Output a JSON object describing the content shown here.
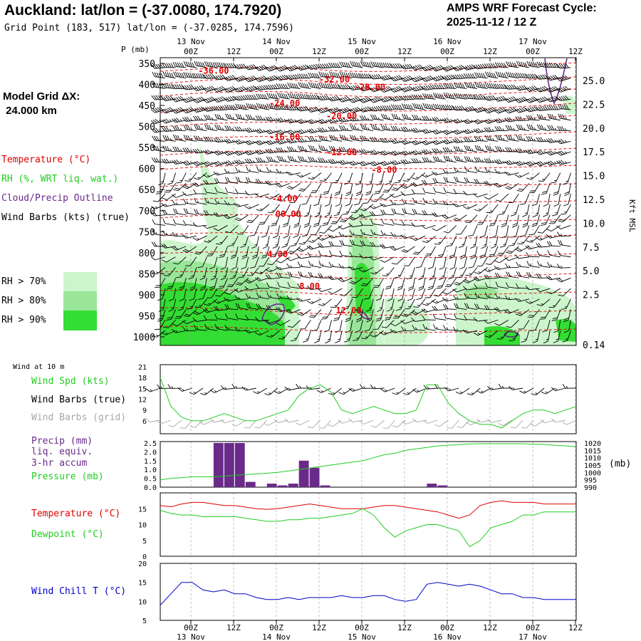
{
  "header": {
    "title": "Auckland:  lat/lon = (-37.0080, 174.7920)",
    "subtitle": "Grid Point (183, 517) lat/lon = (-37.0285, 174.7596)",
    "cycle_line1": "AMPS WRF Forecast Cycle:",
    "cycle_line2": "2025-11-12 / 12  Z",
    "grid_line1": "Model Grid ΔX:",
    "grid_line2": " 24.000 km"
  },
  "legend": {
    "temperature": "Temperature (°C)",
    "rh": "RH (%, WRT liq. wat.)",
    "cloud": "Cloud/Precip Outline",
    "barbs": "Wind Barbs (kts) (true)",
    "rh70": "RH > 70%",
    "rh80": "RH > 80%",
    "rh90": "RH > 90%",
    "wind10m": "Wind at 10 m",
    "wind_spd": "Wind Spd (kts)",
    "wind_true": "Wind Barbs (true)",
    "wind_grid": "Wind Barbs (grid)",
    "precip1": "Precip (mm)",
    "precip2": "liq. equiv.",
    "precip3": "3-hr accum",
    "pressure": "Pressure (mb)",
    "pressure_unit": "(mb)",
    "temp2": "Temperature (°C)",
    "dewpoint": "Dewpoint (°C)",
    "windchill": "Wind Chill T (°C)",
    "p_axis_label": "P (mb)",
    "kft_label": "Kft MSL"
  },
  "colors": {
    "temp": "#e00000",
    "green": "#22cc22",
    "purple": "#6a2a8a",
    "blue": "#0000cc",
    "grey": "#a8a8a8",
    "rh70": "#ccf5cc",
    "rh80": "#99e699",
    "rh90": "#33dd33"
  },
  "chart_data": [
    {
      "type": "heatmap",
      "name": "vertical cross-section",
      "time_top_labels": [
        "00Z",
        "12Z",
        "00Z",
        "12Z",
        "00Z",
        "12Z",
        "00Z",
        "12Z",
        "00Z",
        "12Z"
      ],
      "date_top_labels": [
        "13 Nov",
        "14 Nov",
        "15 Nov",
        "16 Nov",
        "17 Nov"
      ],
      "pressure_levels": [
        350,
        400,
        450,
        500,
        550,
        600,
        650,
        700,
        750,
        800,
        850,
        900,
        950,
        1000
      ],
      "height_kft": [
        "25.0",
        "22.5",
        "20.0",
        "17.5",
        "15.0",
        "12.5",
        "10.0",
        "7.5",
        "5.0",
        "2.5",
        "0.14"
      ],
      "temp_contour_labels": [
        {
          "text": "-36.00",
          "t": 15,
          "p": 368
        },
        {
          "text": "-32.00",
          "t": 49,
          "p": 388
        },
        {
          "text": "-28.00",
          "t": 59,
          "p": 407
        },
        {
          "text": "-24.00",
          "t": 35,
          "p": 445
        },
        {
          "text": "-20.00",
          "t": 51,
          "p": 475
        },
        {
          "text": "-16.00",
          "t": 35,
          "p": 525
        },
        {
          "text": "-12.00",
          "t": 51,
          "p": 562
        },
        {
          "text": "-8.00",
          "t": 63,
          "p": 603
        },
        {
          "text": "-4.00",
          "t": 35,
          "p": 672
        },
        {
          "text": "00.00",
          "t": 36,
          "p": 708
        },
        {
          "text": "4.00",
          "t": 33,
          "p": 804
        },
        {
          "text": "8.00",
          "t": 42,
          "p": 880
        },
        {
          "text": "12.00",
          "t": 53,
          "p": 937
        }
      ]
    },
    {
      "type": "line",
      "name": "10 m wind speed",
      "yticks": [
        6,
        9,
        12,
        15,
        18,
        21
      ],
      "ylim": [
        3,
        21
      ],
      "x_hours": [
        0,
        3,
        6,
        9,
        12,
        15,
        18,
        21,
        24,
        27,
        30,
        33,
        36,
        39,
        42,
        45,
        48,
        51,
        54,
        57,
        60,
        63,
        66,
        69,
        72,
        75,
        78,
        81,
        84,
        87,
        90,
        93,
        96,
        99,
        102,
        105,
        108,
        111,
        114,
        117
      ],
      "speed": [
        18,
        10,
        7,
        6,
        6,
        7,
        8,
        7,
        6,
        6,
        7,
        8,
        9,
        13,
        15,
        16,
        14,
        9,
        8,
        9,
        10,
        9,
        8,
        8,
        9,
        16,
        16,
        11,
        8,
        6,
        5,
        5,
        4,
        6,
        8,
        9,
        9,
        8,
        9,
        10
      ]
    },
    {
      "type": "bar",
      "name": "3-hr precip and pressure",
      "precip_yticks": [
        "2.5",
        "2.0",
        "1.5",
        "1.0",
        "0.5",
        "0.0"
      ],
      "pressure_yticks": [
        "1020",
        "1015",
        "1010",
        "1005",
        "1000",
        "995",
        "990"
      ],
      "x_hours": [
        0,
        3,
        6,
        9,
        12,
        15,
        18,
        21,
        24,
        27,
        30,
        33,
        36,
        39,
        42,
        45,
        48,
        51,
        54,
        57,
        60,
        63,
        66,
        69,
        72,
        75,
        78,
        81,
        84,
        87,
        90,
        93,
        96,
        99,
        102,
        105,
        108,
        111,
        114,
        117
      ],
      "precip": [
        0,
        0,
        0,
        0,
        0,
        2.5,
        2.5,
        2.5,
        0.3,
        0,
        0.2,
        0.1,
        0.2,
        1.5,
        1.1,
        0.1,
        0,
        0,
        0,
        0,
        0,
        0,
        0,
        0,
        0,
        0.2,
        0.1,
        0,
        0,
        0,
        0,
        0,
        0,
        0,
        0,
        0,
        0,
        0,
        0,
        0
      ],
      "pressure": [
        995,
        996,
        996.5,
        997,
        997,
        997,
        997.5,
        998,
        998.5,
        999,
        999.5,
        1000,
        1001,
        1002,
        1003,
        1004,
        1005,
        1006,
        1007,
        1008,
        1010,
        1012,
        1013,
        1015,
        1016,
        1017,
        1018,
        1018.5,
        1019,
        1019.3,
        1019.5,
        1019.5,
        1019.5,
        1019.5,
        1019.5,
        1019.2,
        1019,
        1018.5,
        1018,
        1017.5
      ]
    },
    {
      "type": "line",
      "name": "temperature and dewpoint",
      "yticks": [
        "15",
        "10",
        "5",
        "0"
      ],
      "ylim": [
        0,
        20
      ],
      "x_hours": [
        0,
        3,
        6,
        9,
        12,
        15,
        18,
        21,
        24,
        27,
        30,
        33,
        36,
        39,
        42,
        45,
        48,
        51,
        54,
        57,
        60,
        63,
        66,
        69,
        72,
        75,
        78,
        81,
        84,
        87,
        90,
        93,
        96,
        99,
        102,
        105,
        108,
        111,
        114,
        117
      ],
      "temp": [
        16,
        15.6,
        16.5,
        17,
        17,
        16.5,
        16,
        16,
        15.5,
        15,
        14.8,
        15,
        15.5,
        16,
        16.5,
        16,
        15.5,
        15,
        15,
        15,
        15.5,
        16,
        16,
        15.5,
        15,
        14.5,
        14,
        13,
        12,
        13,
        16,
        17,
        17.5,
        17,
        17,
        17,
        16.5,
        16.5,
        16.5,
        16.5
      ],
      "dewpoint": [
        14.5,
        13.5,
        13,
        13,
        12.5,
        12.5,
        12.5,
        12.5,
        12,
        11.5,
        11,
        11,
        11.5,
        11.5,
        12,
        12,
        12.5,
        13,
        13.5,
        15,
        13,
        9,
        6,
        8,
        9,
        10,
        10,
        9,
        8,
        3,
        5,
        9,
        10,
        11,
        13,
        13,
        14,
        14,
        14,
        14
      ]
    },
    {
      "type": "line",
      "name": "wind chill",
      "yticks": [
        "20",
        "15",
        "10",
        "5"
      ],
      "ylim": [
        5,
        20
      ],
      "x_hours": [
        0,
        3,
        6,
        9,
        12,
        15,
        18,
        21,
        24,
        27,
        30,
        33,
        36,
        39,
        42,
        45,
        48,
        51,
        54,
        57,
        60,
        63,
        66,
        69,
        72,
        75,
        78,
        81,
        84,
        87,
        90,
        93,
        96,
        99,
        102,
        105,
        108,
        111,
        114,
        117
      ],
      "chill": [
        9,
        12,
        15,
        15,
        13,
        12.5,
        13,
        12,
        12,
        11,
        10.5,
        10.5,
        11,
        10.5,
        11,
        11,
        11,
        11.5,
        11,
        11,
        11.5,
        11.5,
        10.5,
        10,
        10.5,
        14.5,
        15,
        14.5,
        14,
        14.5,
        14,
        13,
        12,
        12,
        11,
        11,
        10.5,
        10.5,
        10.5,
        10.5
      ]
    }
  ],
  "bottom_axis": {
    "time_labels": [
      "00Z",
      "12Z",
      "00Z",
      "12Z",
      "00Z",
      "12Z",
      "00Z",
      "12Z",
      "00Z",
      "12Z"
    ],
    "date_labels": [
      "13 Nov",
      "14 Nov",
      "15 Nov",
      "16 Nov",
      "17 Nov"
    ]
  }
}
